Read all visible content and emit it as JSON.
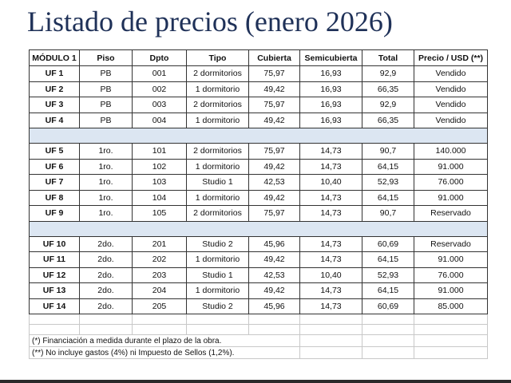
{
  "title": "Listado de precios (enero 2026)",
  "table": {
    "headers": [
      "MÓDULO 1",
      "Piso",
      "Dpto",
      "Tipo",
      "Cubierta",
      "Semicubierta",
      "Total",
      "Precio / USD (**)"
    ],
    "groups": [
      [
        [
          "UF 1",
          "PB",
          "001",
          "2 dormitorios",
          "75,97",
          "16,93",
          "92,9",
          "Vendido"
        ],
        [
          "UF 2",
          "PB",
          "002",
          "1 dormitorio",
          "49,42",
          "16,93",
          "66,35",
          "Vendido"
        ],
        [
          "UF 3",
          "PB",
          "003",
          "2 dormitorios",
          "75,97",
          "16,93",
          "92,9",
          "Vendido"
        ],
        [
          "UF 4",
          "PB",
          "004",
          "1 dormitorio",
          "49,42",
          "16,93",
          "66,35",
          "Vendido"
        ]
      ],
      [
        [
          "UF 5",
          "1ro.",
          "101",
          "2 dormitorios",
          "75,97",
          "14,73",
          "90,7",
          "140.000"
        ],
        [
          "UF 6",
          "1ro.",
          "102",
          "1 dormitorio",
          "49,42",
          "14,73",
          "64,15",
          "91.000"
        ],
        [
          "UF 7",
          "1ro.",
          "103",
          "Studio 1",
          "42,53",
          "10,40",
          "52,93",
          "76.000"
        ],
        [
          "UF 8",
          "1ro.",
          "104",
          "1 dormitorio",
          "49,42",
          "14,73",
          "64,15",
          "91.000"
        ],
        [
          "UF 9",
          "1ro.",
          "105",
          "2 dormitorios",
          "75,97",
          "14,73",
          "90,7",
          "Reservado"
        ]
      ],
      [
        [
          "UF 10",
          "2do.",
          "201",
          "Studio 2",
          "45,96",
          "14,73",
          "60,69",
          "Reservado"
        ],
        [
          "UF 11",
          "2do.",
          "202",
          "1 dormitorio",
          "49,42",
          "14,73",
          "64,15",
          "91.000"
        ],
        [
          "UF 12",
          "2do.",
          "203",
          "Studio 1",
          "42,53",
          "10,40",
          "52,93",
          "76.000"
        ],
        [
          "UF 13",
          "2do.",
          "204",
          "1 dormitorio",
          "49,42",
          "14,73",
          "64,15",
          "91.000"
        ],
        [
          "UF 14",
          "2do.",
          "205",
          "Studio 2",
          "45,96",
          "14,73",
          "60,69",
          "85.000"
        ]
      ]
    ]
  },
  "notes": [
    "(*) Financiación a medida durante el plazo de la obra.",
    "(**) No incluye gastos (4%) ni Impuesto de Sellos (1,2%)."
  ],
  "colors": {
    "title": "#1f3158",
    "separator": "#dce6f2"
  }
}
